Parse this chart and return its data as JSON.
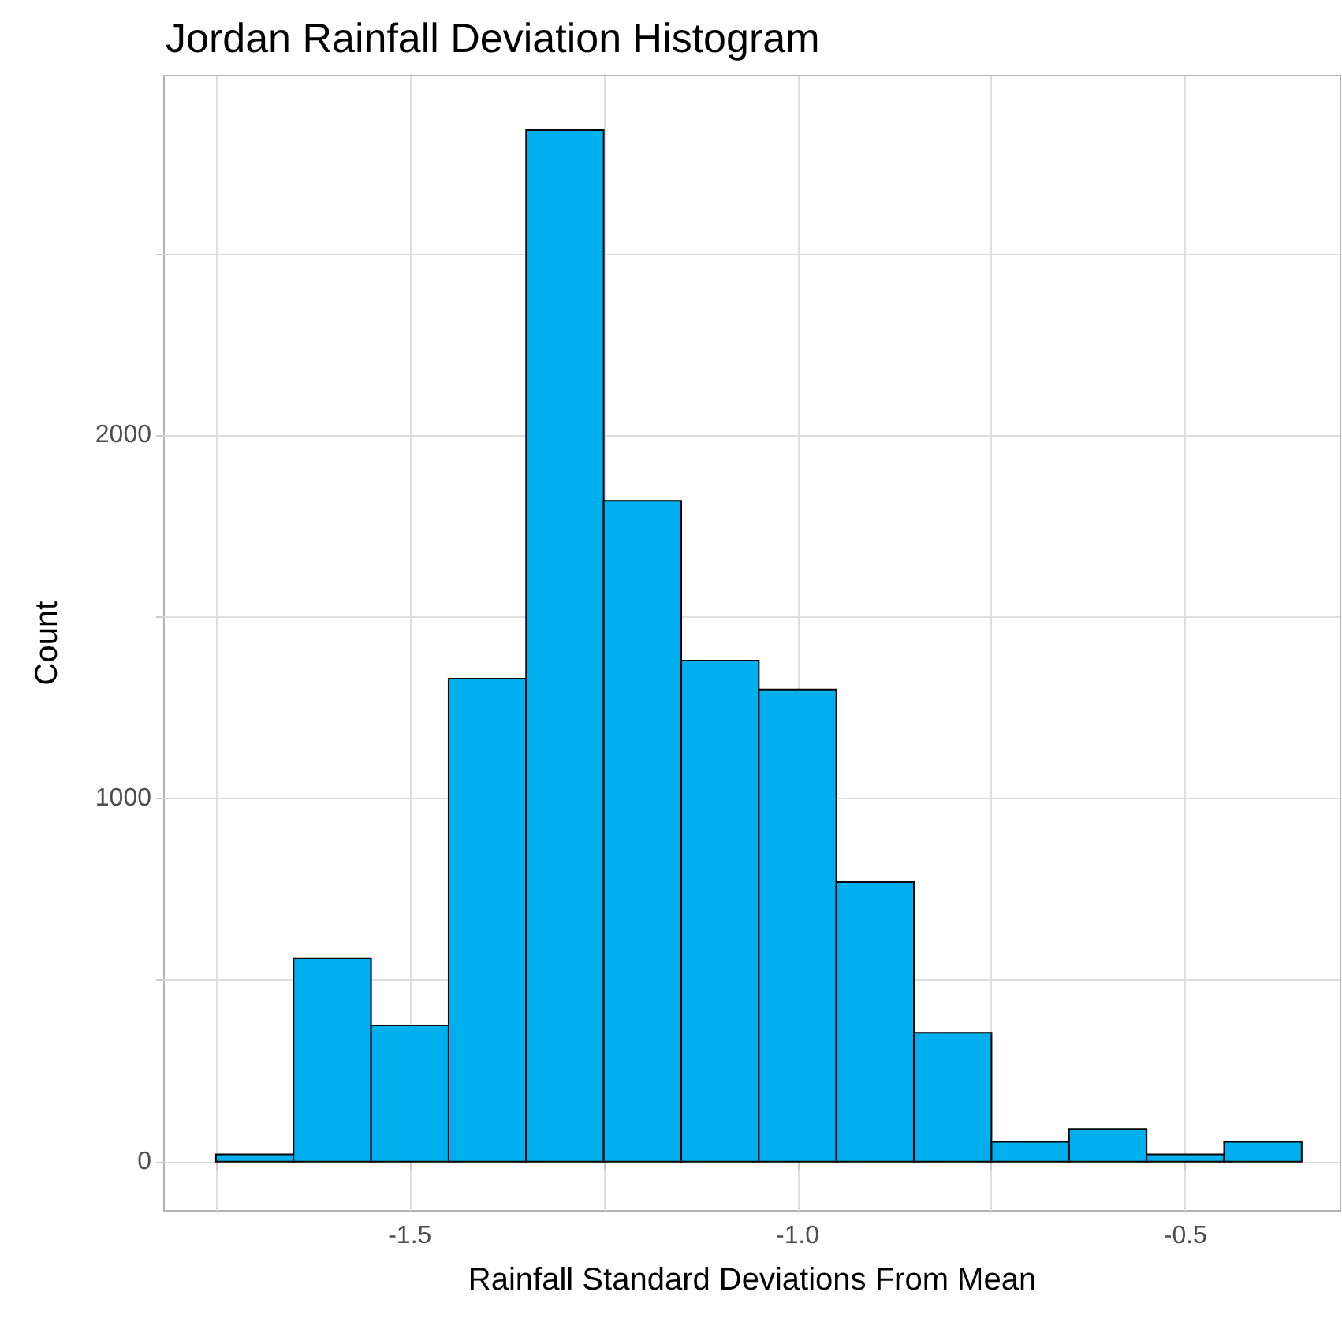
{
  "chart_data": {
    "type": "histogram",
    "title": "Jordan Rainfall Deviation Histogram",
    "xlabel": "Rainfall Standard Deviations From Mean",
    "ylabel": "Count",
    "bins": [
      -1.75,
      -1.65,
      -1.55,
      -1.45,
      -1.35,
      -1.25,
      -1.15,
      -1.05,
      -0.95,
      -0.85,
      -0.75,
      -0.65,
      -0.55,
      -0.45,
      -0.35
    ],
    "values": [
      20,
      560,
      375,
      1330,
      2840,
      1820,
      1380,
      1300,
      770,
      355,
      55,
      90,
      20,
      55
    ],
    "color": "#00b0ee",
    "xlim": [
      -1.817,
      -0.3
    ],
    "xticks": [
      {
        "value": -1.75,
        "label": null
      },
      -1.5,
      {
        "value": -1.25,
        "label": null
      },
      {
        "value": -1.0,
        "label": "-1.0"
      },
      {
        "value": -0.75,
        "label": null
      },
      -0.5
    ],
    "ylim": [
      -135,
      2990
    ],
    "yticks": [
      0,
      {
        "value": 500,
        "label": null
      },
      1000,
      {
        "value": 1500,
        "label": null
      },
      2000,
      {
        "value": 2500,
        "label": null
      }
    ],
    "grid": true
  }
}
